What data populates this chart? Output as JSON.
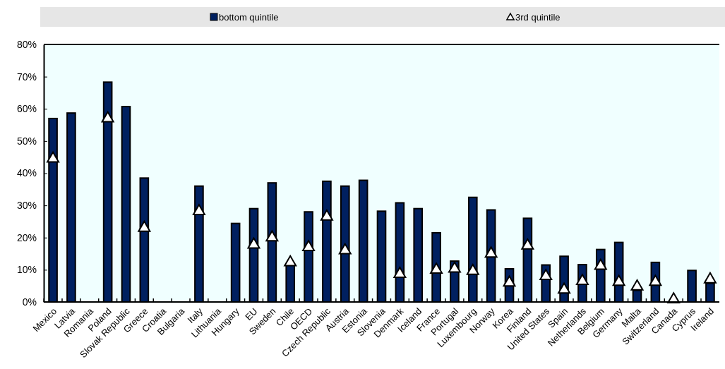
{
  "chart_data": {
    "type": "bar",
    "categories": [
      "Mexico",
      "Latvia",
      "Romania",
      "Poland",
      "Slovak Republic",
      "Greece",
      "Croatia",
      "Bulgaria",
      "Italy",
      "Lithuania",
      "Hungary",
      "EU",
      "Sweden",
      "Chile",
      "OECD",
      "Czech Republic",
      "Austria",
      "Estonia",
      "Slovenia",
      "Denmark",
      "Iceland",
      "France",
      "Portugal",
      "Luxembourg",
      "Norway",
      "Korea",
      "Finland",
      "United States",
      "Spain",
      "Netherlands",
      "Belgium",
      "Germany",
      "Malta",
      "Switzerland",
      "Canada",
      "Cyprus",
      "Ireland"
    ],
    "series": [
      {
        "name": "bottom quintile",
        "color": "#002060",
        "values": [
          57,
          58.7,
          null,
          68.3,
          60.7,
          38.5,
          null,
          null,
          36,
          null,
          24.4,
          29,
          37,
          11.5,
          28,
          37.5,
          36,
          37.8,
          28.2,
          30.8,
          29,
          21.5,
          12.7,
          32.5,
          28.6,
          10.3,
          26,
          11.5,
          14.2,
          11.6,
          16.3,
          18.5,
          3.6,
          12.3,
          null,
          9.8,
          5.8
        ]
      },
      {
        "name": "3rd quintile",
        "type": "scatter",
        "color": "#ffffff",
        "values": [
          44.5,
          null,
          null,
          57,
          null,
          23,
          null,
          null,
          28.2,
          null,
          null,
          17.8,
          20,
          12.3,
          17,
          26.5,
          16,
          null,
          null,
          8.7,
          null,
          10,
          10.3,
          9.6,
          15,
          6,
          17.5,
          8,
          3.8,
          6.5,
          11.2,
          6.2,
          4.8,
          6.2,
          0.8,
          null,
          7
        ]
      }
    ],
    "ylim": [
      0,
      80
    ],
    "yticks": [
      {
        "value": 0,
        "label": "0%"
      },
      {
        "value": 10,
        "label": "10%"
      },
      {
        "value": 20,
        "label": "20%"
      },
      {
        "value": 30,
        "label": "30%"
      },
      {
        "value": 40,
        "label": "40%"
      },
      {
        "value": 50,
        "label": "50%"
      },
      {
        "value": 60,
        "label": "60%"
      },
      {
        "value": 70,
        "label": "70%"
      },
      {
        "value": 80,
        "label": "80%"
      }
    ],
    "grid": false,
    "legend": "top",
    "marker": "triangle"
  }
}
